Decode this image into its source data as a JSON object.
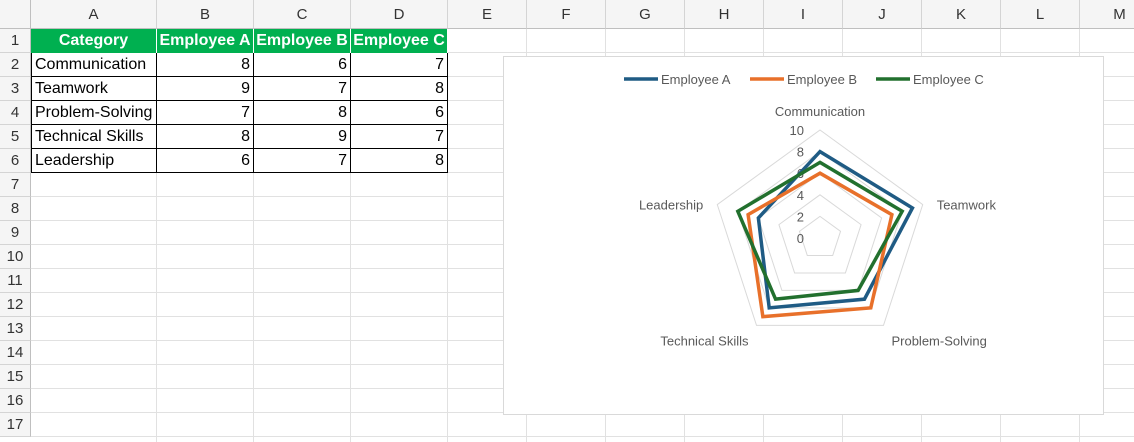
{
  "sheet": {
    "columns": [
      "A",
      "B",
      "C",
      "D",
      "E",
      "F",
      "G",
      "H",
      "I",
      "J",
      "K",
      "L",
      "M"
    ],
    "rows": [
      "1",
      "2",
      "3",
      "4",
      "5",
      "6",
      "7",
      "8",
      "9",
      "10",
      "11",
      "12",
      "13",
      "14",
      "15",
      "16",
      "17"
    ]
  },
  "table": {
    "headers": [
      "Category",
      "Employee A",
      "Employee B",
      "Employee C"
    ],
    "rows": [
      {
        "category": "Communication",
        "a": "8",
        "b": "6",
        "c": "7"
      },
      {
        "category": "Teamwork",
        "a": "9",
        "b": "7",
        "c": "8"
      },
      {
        "category": "Problem-Solving",
        "a": "7",
        "b": "8",
        "c": "6"
      },
      {
        "category": "Technical Skills",
        "a": "8",
        "b": "9",
        "c": "7"
      },
      {
        "category": "Leadership",
        "a": "6",
        "b": "7",
        "c": "8"
      }
    ],
    "header_color": "#00b050"
  },
  "chart_data": {
    "type": "radar",
    "categories": [
      "Communication",
      "Teamwork",
      "Problem-Solving",
      "Technical Skills",
      "Leadership"
    ],
    "series": [
      {
        "name": "Employee A",
        "values": [
          8,
          9,
          7,
          8,
          6
        ],
        "color": "#1f5b84"
      },
      {
        "name": "Employee B",
        "values": [
          6,
          7,
          8,
          9,
          7
        ],
        "color": "#e8702a"
      },
      {
        "name": "Employee C",
        "values": [
          7,
          8,
          6,
          7,
          8
        ],
        "color": "#22702e"
      }
    ],
    "rlim": [
      0,
      10
    ],
    "ticks": [
      "0",
      "2",
      "4",
      "6",
      "8",
      "10"
    ],
    "legend": "top",
    "grid": true
  }
}
